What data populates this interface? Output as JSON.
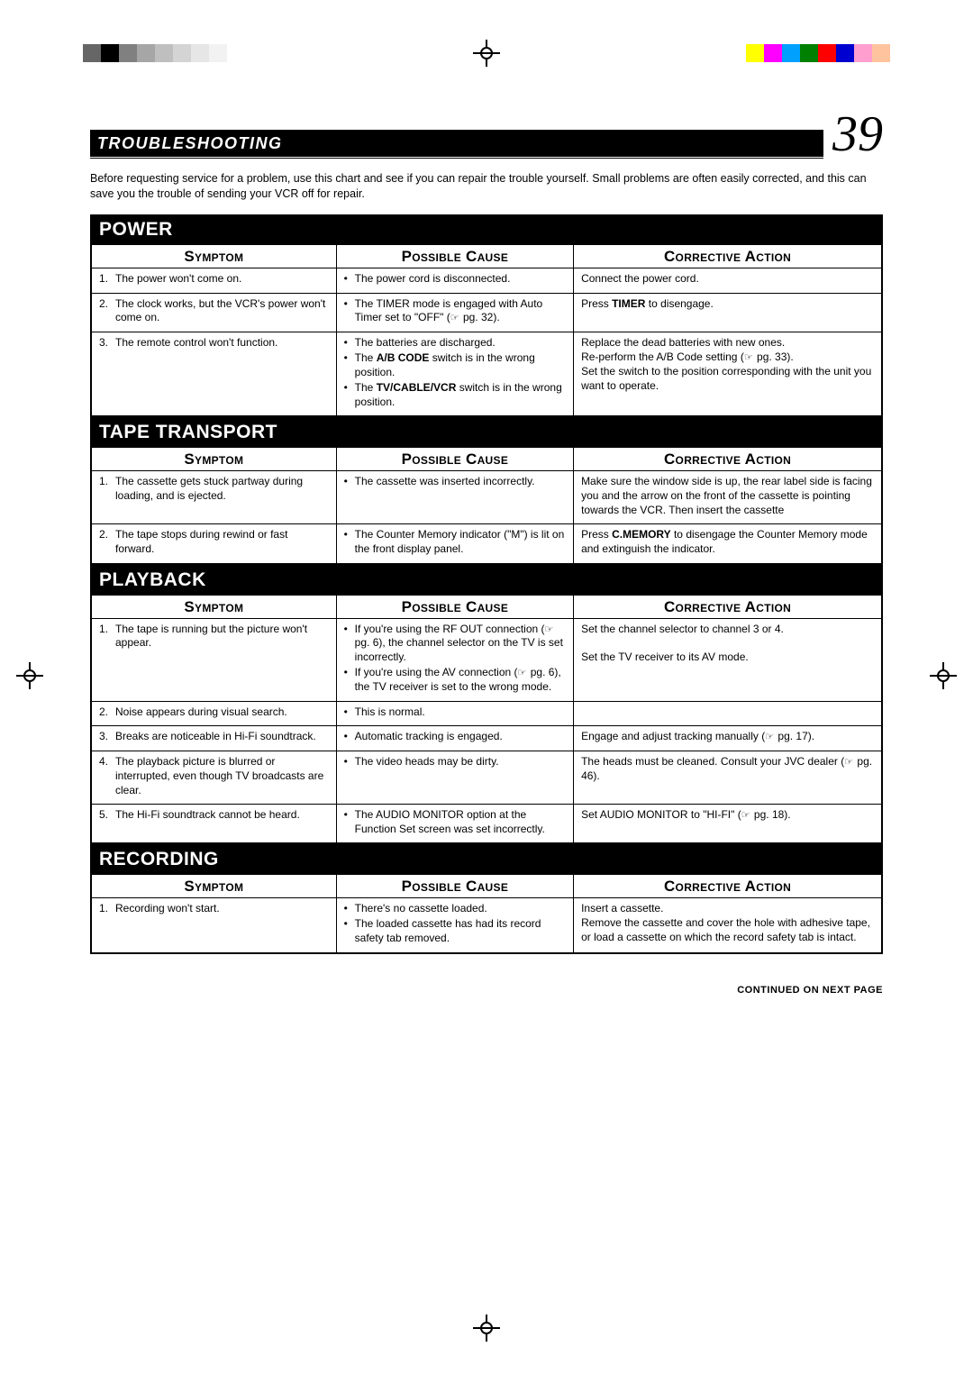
{
  "reg_top_gray": [
    "#666666",
    "#000000",
    "#808080",
    "#a6a6a6",
    "#bfbfbf",
    "#d4d4d4",
    "#e6e6e6",
    "#f2f2f2"
  ],
  "reg_top_color": [
    "#ffff00",
    "#ff00ff",
    "#00a0ff",
    "#008000",
    "#ff0000",
    "#0000d0",
    "#ff9ecf",
    "#ffc49e"
  ],
  "title": "TROUBLESHOOTING",
  "page_number": "39",
  "intro": "Before requesting service for a problem, use this chart and see if you can repair the trouble yourself. Small problems are often easily corrected, and this can save you the trouble of sending your VCR off for repair.",
  "col_headers": {
    "symptom": "Symptom",
    "cause": "Possible Cause",
    "action": "Corrective Action"
  },
  "continued": "CONTINUED ON NEXT PAGE",
  "sections": [
    {
      "name": "POWER",
      "rows": [
        {
          "n": "1.",
          "symptom": "The power won't come on.",
          "causes": [
            "The power cord is disconnected."
          ],
          "action_html": "Connect the power cord."
        },
        {
          "n": "2.",
          "symptom": "The clock works, but the VCR's power won't come on.",
          "causes": [
            "The TIMER mode is engaged with Auto Timer set to \"OFF\" (<span class=\"pgref\"></span> pg. 32)."
          ],
          "action_html": "Press <b>TIMER</b> to disengage."
        },
        {
          "n": "3.",
          "symptom": "The remote control won't function.",
          "causes": [
            "The batteries are discharged.",
            "The <b>A/B CODE</b> switch is in the wrong position.",
            "The <b>TV/CABLE/VCR</b> switch is in the wrong position."
          ],
          "action_html": "Replace the dead batteries with new ones.<br>Re-perform the A/B Code setting (<span class=\"pgref\"></span> pg. 33).<br>Set the switch to the position corresponding with the unit you want to operate."
        }
      ]
    },
    {
      "name": "TAPE TRANSPORT",
      "rows": [
        {
          "n": "1.",
          "symptom": "The cassette gets stuck partway during loading, and is ejected.",
          "causes": [
            "The cassette was inserted incorrectly."
          ],
          "action_html": "Make sure the window side is up, the rear label side is facing you and the arrow on the front of the cassette is pointing towards the VCR. Then insert the cassette"
        },
        {
          "n": "2.",
          "symptom": "The tape stops during rewind or fast forward.",
          "causes": [
            "The Counter Memory indicator (\"M\") is lit on the front display panel."
          ],
          "action_html": "Press <b>C.MEMORY</b> to disengage the Counter Memory mode and extinguish the indicator."
        }
      ]
    },
    {
      "name": "PLAYBACK",
      "rows": [
        {
          "n": "1.",
          "symptom": "The tape is running but the picture won't appear.",
          "causes": [
            "If you're using the RF OUT connection (<span class=\"pgref\"></span> pg. 6), the channel selector on the TV is set incorrectly.",
            "If you're using the AV connection (<span class=\"pgref\"></span> pg. 6), the TV receiver is set to the wrong mode."
          ],
          "action_html": "Set the channel selector to channel 3 or 4.<br><br>Set the TV receiver to its AV mode."
        },
        {
          "n": "2.",
          "symptom": "Noise appears during visual search.",
          "causes": [
            "This is normal."
          ],
          "action_html": ""
        },
        {
          "n": "3.",
          "symptom": "Breaks are noticeable in Hi-Fi soundtrack.",
          "causes": [
            "Automatic tracking is engaged."
          ],
          "action_html": "Engage and adjust tracking manually (<span class=\"pgref\"></span> pg. 17)."
        },
        {
          "n": "4.",
          "symptom": "The playback picture is blurred or interrupted, even though TV broadcasts are clear.",
          "causes": [
            "The video heads may be dirty."
          ],
          "action_html": "The heads must be cleaned. Consult your JVC dealer (<span class=\"pgref\"></span> pg. 46)."
        },
        {
          "n": "5.",
          "symptom": "The Hi-Fi soundtrack cannot be heard.",
          "causes": [
            "The AUDIO MONITOR option at the Function Set screen was set incorrectly."
          ],
          "action_html": "Set AUDIO MONITOR to \"HI-FI\" (<span class=\"pgref\"></span> pg. 18)."
        }
      ]
    },
    {
      "name": "RECORDING",
      "rows": [
        {
          "n": "1.",
          "symptom": "Recording won't start.",
          "causes": [
            "There's no cassette loaded.",
            "The loaded cassette has had its record safety tab removed."
          ],
          "action_html": "Insert a cassette.<br>Remove the cassette and cover the hole with adhesive tape, or load a cassette on which the record safety tab is intact."
        }
      ]
    }
  ]
}
